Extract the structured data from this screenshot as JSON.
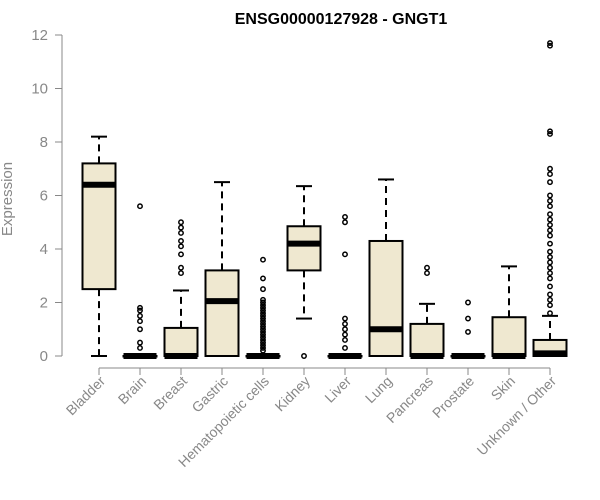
{
  "chart_data": {
    "type": "boxplot",
    "title": "ENSG00000127928 - GNGT1",
    "xlabel": "",
    "ylabel": "Expression",
    "ylim": [
      0,
      12
    ],
    "yticks": [
      0,
      2,
      4,
      6,
      8,
      10,
      12
    ],
    "grid": false,
    "colors": {
      "box_fill": "#efe8d0",
      "stroke": "#000000",
      "axis": "#888888"
    },
    "categories": [
      "Bladder",
      "Brain",
      "Breast",
      "Gastric",
      "Hematopoietic cells",
      "Kidney",
      "Liver",
      "Lung",
      "Pancreas",
      "Prostate",
      "Skin",
      "Unknown / Other"
    ],
    "boxes": [
      {
        "category": "Bladder",
        "whisker_low": 0,
        "q1": 2.5,
        "median": 6.4,
        "q3": 7.2,
        "whisker_high": 8.2,
        "outliers": []
      },
      {
        "category": "Brain",
        "whisker_low": 0,
        "q1": 0,
        "median": 0,
        "q3": 0,
        "whisker_high": 0,
        "outliers": [
          0.3,
          0.5,
          1.0,
          1.3,
          1.5,
          1.7,
          1.8,
          5.6
        ]
      },
      {
        "category": "Breast",
        "whisker_low": 0,
        "q1": 0,
        "median": 0,
        "q3": 1.05,
        "whisker_high": 2.45,
        "outliers": [
          3.1,
          3.3,
          3.8,
          4.1,
          4.3,
          4.6,
          4.8,
          5.0
        ]
      },
      {
        "category": "Gastric",
        "whisker_low": 0,
        "q1": 0,
        "median": 2.05,
        "q3": 3.2,
        "whisker_high": 6.5,
        "outliers": []
      },
      {
        "category": "Hematopoietic cells",
        "whisker_low": 0,
        "q1": 0,
        "median": 0,
        "q3": 0,
        "whisker_high": 0,
        "outliers": [
          0.2,
          0.3,
          0.4,
          0.5,
          0.6,
          0.7,
          0.8,
          0.9,
          1.0,
          1.1,
          1.2,
          1.3,
          1.4,
          1.5,
          1.6,
          1.7,
          1.8,
          1.9,
          2.0,
          2.1,
          2.5,
          2.9,
          3.6
        ]
      },
      {
        "category": "Kidney",
        "whisker_low": 1.4,
        "q1": 3.2,
        "median": 4.2,
        "q3": 4.85,
        "whisker_high": 6.35,
        "outliers": [
          0
        ]
      },
      {
        "category": "Liver",
        "whisker_low": 0,
        "q1": 0,
        "median": 0,
        "q3": 0,
        "whisker_high": 0,
        "outliers": [
          0.3,
          0.6,
          0.8,
          1.0,
          1.2,
          1.4,
          3.8,
          5.0,
          5.2
        ]
      },
      {
        "category": "Lung",
        "whisker_low": 0,
        "q1": 0,
        "median": 1.0,
        "q3": 4.3,
        "whisker_high": 6.6,
        "outliers": []
      },
      {
        "category": "Pancreas",
        "whisker_low": 0,
        "q1": 0,
        "median": 0,
        "q3": 1.2,
        "whisker_high": 1.95,
        "outliers": [
          3.1,
          3.3
        ]
      },
      {
        "category": "Prostate",
        "whisker_low": 0,
        "q1": 0,
        "median": 0,
        "q3": 0,
        "whisker_high": 0,
        "outliers": [
          0.9,
          1.4,
          2.0
        ]
      },
      {
        "category": "Skin",
        "whisker_low": 0,
        "q1": 0,
        "median": 0,
        "q3": 1.45,
        "whisker_high": 3.35,
        "outliers": []
      },
      {
        "category": "Unknown / Other",
        "whisker_low": 0,
        "q1": 0,
        "median": 0.1,
        "q3": 0.6,
        "whisker_high": 1.5,
        "outliers": [
          1.6,
          1.9,
          2.1,
          2.3,
          2.6,
          2.9,
          3.1,
          3.3,
          3.5,
          3.7,
          3.9,
          4.2,
          4.5,
          4.7,
          4.9,
          5.1,
          5.3,
          5.6,
          5.8,
          6.0,
          6.5,
          6.8,
          7.0,
          8.3,
          8.4,
          11.6,
          11.7
        ]
      }
    ]
  }
}
